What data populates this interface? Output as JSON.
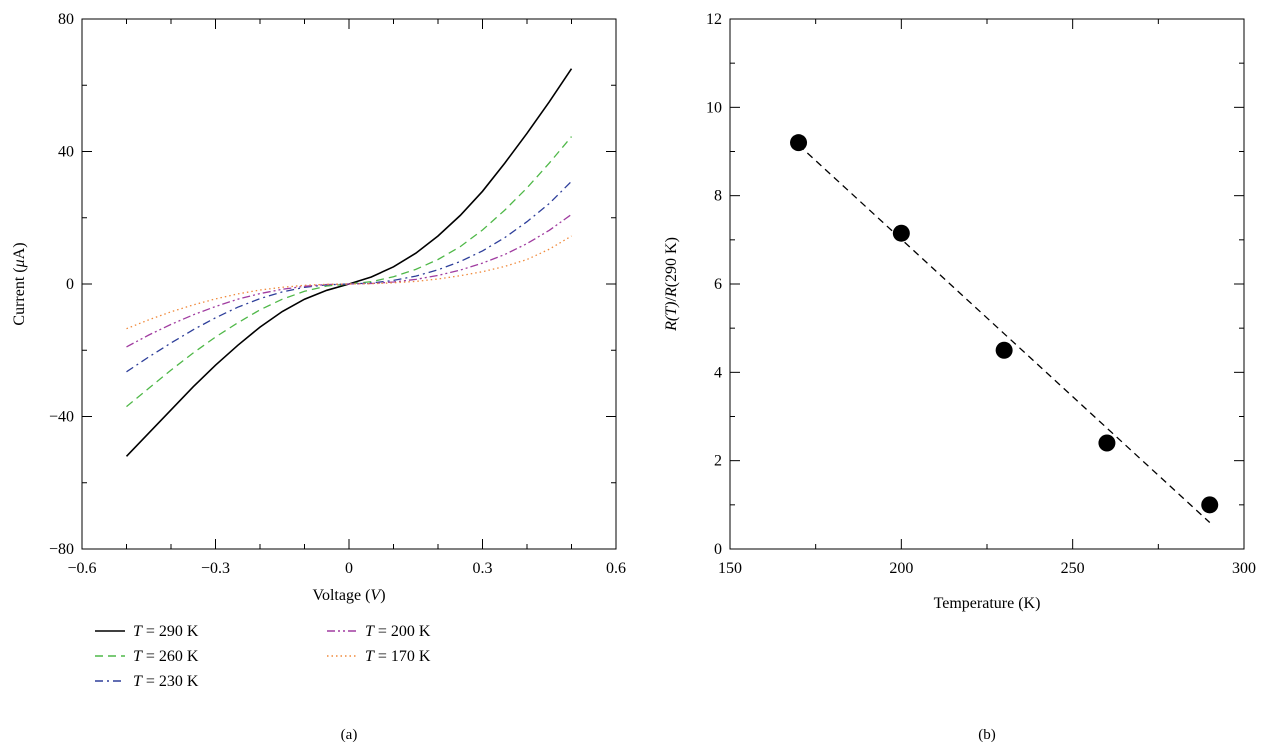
{
  "chart_data": [
    {
      "panel": "(a)",
      "type": "line",
      "xlabel": "Voltage (V)",
      "ylabel": "Current (μA)",
      "xlim": [
        -0.6,
        0.6
      ],
      "ylim": [
        -80,
        80
      ],
      "xticks": [
        -0.6,
        -0.3,
        0,
        0.3,
        0.6
      ],
      "xtick_labels": [
        "−0.6",
        "−0.3",
        "0",
        "0.3",
        "0.6"
      ],
      "yticks": [
        -80,
        -40,
        0,
        40,
        80
      ],
      "ytick_labels": [
        "−80",
        "−40",
        "0",
        "40",
        "80"
      ],
      "grid": false,
      "legend_position": "below",
      "series": [
        {
          "name": "T = 290 K",
          "color": "#000000",
          "dash": "solid",
          "x": [
            -0.5,
            -0.45,
            -0.4,
            -0.35,
            -0.3,
            -0.25,
            -0.2,
            -0.15,
            -0.1,
            -0.05,
            0,
            0.05,
            0.1,
            0.15,
            0.2,
            0.25,
            0.3,
            0.35,
            0.4,
            0.45,
            0.5
          ],
          "y": [
            -52,
            -45,
            -38,
            -31,
            -24.5,
            -18.5,
            -13,
            -8.3,
            -4.6,
            -1.9,
            0,
            2.1,
            5.2,
            9.3,
            14.5,
            20.7,
            28,
            36.5,
            45.5,
            55,
            65
          ]
        },
        {
          "name": "T = 260 K",
          "color": "#4fb848",
          "dash": "dashed",
          "x": [
            -0.5,
            -0.45,
            -0.4,
            -0.35,
            -0.3,
            -0.25,
            -0.2,
            -0.15,
            -0.1,
            -0.05,
            0,
            0.05,
            0.1,
            0.15,
            0.2,
            0.25,
            0.3,
            0.35,
            0.4,
            0.45,
            0.5
          ],
          "y": [
            -37,
            -31.5,
            -26,
            -20.8,
            -16,
            -11.7,
            -7.8,
            -4.6,
            -2.2,
            -0.6,
            0,
            0.7,
            2.2,
            4.4,
            7.4,
            11.3,
            16.3,
            22.3,
            29,
            36.5,
            44.5
          ]
        },
        {
          "name": "T = 230 K",
          "color": "#2e3f9a",
          "dash": "dashdot",
          "x": [
            -0.5,
            -0.45,
            -0.4,
            -0.35,
            -0.3,
            -0.25,
            -0.2,
            -0.15,
            -0.1,
            -0.05,
            0,
            0.05,
            0.1,
            0.15,
            0.2,
            0.25,
            0.3,
            0.35,
            0.4,
            0.45,
            0.5
          ],
          "y": [
            -26.5,
            -22,
            -17.8,
            -13.8,
            -10.2,
            -7,
            -4.4,
            -2.4,
            -1,
            -0.25,
            0,
            0.3,
            1.1,
            2.4,
            4.3,
            6.8,
            10,
            14,
            18.8,
            24.3,
            31
          ]
        },
        {
          "name": "T = 200 K",
          "color": "#a03ca0",
          "dash": "dashdotdot",
          "x": [
            -0.5,
            -0.45,
            -0.4,
            -0.35,
            -0.3,
            -0.25,
            -0.2,
            -0.15,
            -0.1,
            -0.05,
            0,
            0.05,
            0.1,
            0.15,
            0.2,
            0.25,
            0.3,
            0.35,
            0.4,
            0.45,
            0.5
          ],
          "y": [
            -19,
            -15.4,
            -12.2,
            -9.3,
            -6.8,
            -4.6,
            -2.9,
            -1.6,
            -0.7,
            -0.15,
            0,
            0.15,
            0.6,
            1.4,
            2.6,
            4.2,
            6.3,
            8.9,
            12.2,
            16.2,
            21
          ]
        },
        {
          "name": "T = 170 K",
          "color": "#f08a3c",
          "dash": "dotted",
          "x": [
            -0.5,
            -0.45,
            -0.4,
            -0.35,
            -0.3,
            -0.25,
            -0.2,
            -0.15,
            -0.1,
            -0.05,
            0,
            0.05,
            0.1,
            0.15,
            0.2,
            0.25,
            0.3,
            0.35,
            0.4,
            0.45,
            0.5
          ],
          "y": [
            -13.5,
            -10.8,
            -8.4,
            -6.3,
            -4.5,
            -3,
            -1.8,
            -1,
            -0.4,
            -0.1,
            0,
            0.1,
            0.35,
            0.8,
            1.5,
            2.5,
            3.7,
            5.3,
            7.4,
            10.5,
            14.5
          ]
        }
      ]
    },
    {
      "panel": "(b)",
      "type": "scatter",
      "xlabel": "Temperature (K)",
      "ylabel": "R(T)/R(290 K)",
      "xlim": [
        150,
        300
      ],
      "ylim": [
        0,
        12
      ],
      "xticks": [
        150,
        200,
        250,
        300
      ],
      "xtick_labels": [
        "150",
        "200",
        "250",
        "300"
      ],
      "yticks": [
        0,
        2,
        4,
        6,
        8,
        10,
        12
      ],
      "ytick_labels": [
        "0",
        "2",
        "4",
        "6",
        "8",
        "10",
        "12"
      ],
      "grid": false,
      "points": {
        "x": [
          170,
          200,
          230,
          260,
          290
        ],
        "y": [
          9.2,
          7.15,
          4.5,
          2.4,
          1.0
        ],
        "color": "#000000"
      },
      "fit_line": {
        "x": [
          170,
          290
        ],
        "y": [
          9.15,
          0.6
        ],
        "color": "#000000",
        "dash": "dashed"
      }
    }
  ],
  "legend": [
    {
      "T": "T",
      "eq": " = 290 K",
      "color": "#000000",
      "dash": "solid"
    },
    {
      "T": "T",
      "eq": " = 260 K",
      "color": "#4fb848",
      "dash": "dashed"
    },
    {
      "T": "T",
      "eq": " = 230 K",
      "color": "#2e3f9a",
      "dash": "dashdot"
    },
    {
      "T": "T",
      "eq": " = 200 K",
      "color": "#a03ca0",
      "dash": "dashdotdot"
    },
    {
      "T": "T",
      "eq": " = 170 K",
      "color": "#f08a3c",
      "dash": "dotted"
    }
  ],
  "labels": {
    "a_ylabel_pre": "Current (",
    "a_ylabel_mu": "μ",
    "a_ylabel_post": "A)",
    "a_xlabel_pre": "Voltage (",
    "a_xlabel_v": "V",
    "a_xlabel_post": ")",
    "b_ylabel_R1": "R",
    "b_ylabel_T": "(T)",
    "b_ylabel_slash": "/",
    "b_ylabel_R2": "R",
    "b_ylabel_rest": "(290 K)",
    "b_xlabel": "Temperature (K)",
    "panel_a": "(a)",
    "panel_b": "(b)"
  }
}
